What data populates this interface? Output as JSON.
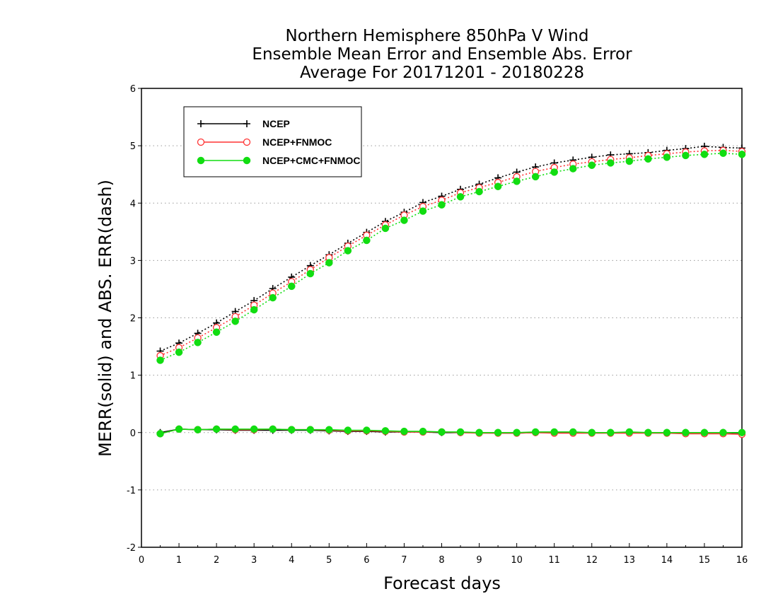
{
  "chart_data": {
    "type": "line",
    "title_lines": [
      "Northern Hemisphere 850hPa V Wind",
      "Ensemble Mean Error and Ensemble Abs. Error",
      "Average For 20171201 - 20180228"
    ],
    "xlabel": "Forecast days",
    "ylabel": "MERR(solid) and ABS. ERR(dash)",
    "xlim": [
      0,
      16
    ],
    "ylim": [
      -2,
      6
    ],
    "xticks": [
      "0",
      "1",
      "2",
      "3",
      "4",
      "5",
      "6",
      "7",
      "8",
      "9",
      "10",
      "11",
      "12",
      "13",
      "14",
      "15",
      "16"
    ],
    "yticks": [
      "-2",
      "-1",
      "0",
      "1",
      "2",
      "3",
      "4",
      "5",
      "6"
    ],
    "grid": "horizontal dotted",
    "legend_position": "top-left",
    "x": [
      0.5,
      1,
      1.5,
      2,
      2.5,
      3,
      3.5,
      4,
      4.5,
      5,
      5.5,
      6,
      6.5,
      7,
      7.5,
      8,
      8.5,
      9,
      9.5,
      10,
      10.5,
      11,
      11.5,
      12,
      12.5,
      13,
      13.5,
      14,
      14.5,
      15,
      15.5,
      16
    ],
    "series": [
      {
        "name": "NCEP",
        "color": "#000000",
        "marker": "plus",
        "merr": [
          0.0,
          0.06,
          0.05,
          0.05,
          0.04,
          0.04,
          0.04,
          0.04,
          0.04,
          0.03,
          0.02,
          0.02,
          0.01,
          0.01,
          0.01,
          0.0,
          0.0,
          0.0,
          -0.01,
          -0.01,
          0.0,
          0.0,
          0.0,
          0.0,
          0.0,
          0.0,
          0.0,
          0.0,
          0.0,
          0.0,
          0.0,
          -0.01
        ],
        "abs_err": [
          1.42,
          1.56,
          1.73,
          1.91,
          2.11,
          2.3,
          2.51,
          2.71,
          2.91,
          3.1,
          3.3,
          3.49,
          3.68,
          3.84,
          4.01,
          4.12,
          4.24,
          4.33,
          4.44,
          4.54,
          4.63,
          4.7,
          4.75,
          4.8,
          4.84,
          4.86,
          4.88,
          4.92,
          4.95,
          4.99,
          4.97,
          4.96
        ]
      },
      {
        "name": "NCEP+FNMOC",
        "color": "#ff3333",
        "marker": "open-circle",
        "merr": [
          -0.02,
          0.06,
          0.05,
          0.06,
          0.05,
          0.05,
          0.06,
          0.05,
          0.05,
          0.04,
          0.03,
          0.03,
          0.02,
          0.01,
          0.01,
          0.01,
          0.0,
          -0.01,
          -0.01,
          -0.01,
          0.0,
          -0.01,
          -0.01,
          -0.01,
          -0.01,
          -0.01,
          -0.01,
          -0.01,
          -0.02,
          -0.02,
          -0.02,
          -0.03
        ],
        "abs_err": [
          1.34,
          1.48,
          1.65,
          1.83,
          2.02,
          2.22,
          2.43,
          2.63,
          2.84,
          3.05,
          3.25,
          3.44,
          3.62,
          3.79,
          3.94,
          4.05,
          4.18,
          4.27,
          4.36,
          4.46,
          4.55,
          4.62,
          4.68,
          4.72,
          4.76,
          4.79,
          4.83,
          4.86,
          4.89,
          4.91,
          4.92,
          4.9
        ]
      },
      {
        "name": "NCEP+CMC+FNMOC",
        "color": "#11dd11",
        "marker": "filled-circle",
        "merr": [
          -0.02,
          0.06,
          0.05,
          0.06,
          0.06,
          0.06,
          0.06,
          0.05,
          0.05,
          0.05,
          0.04,
          0.04,
          0.03,
          0.02,
          0.02,
          0.01,
          0.01,
          0.0,
          0.0,
          0.0,
          0.01,
          0.01,
          0.01,
          0.0,
          0.0,
          0.01,
          0.0,
          0.0,
          0.0,
          0.0,
          0.0,
          0.0
        ],
        "abs_err": [
          1.26,
          1.4,
          1.57,
          1.75,
          1.94,
          2.14,
          2.35,
          2.55,
          2.77,
          2.96,
          3.17,
          3.35,
          3.56,
          3.7,
          3.86,
          3.97,
          4.11,
          4.2,
          4.29,
          4.38,
          4.46,
          4.54,
          4.6,
          4.66,
          4.7,
          4.73,
          4.77,
          4.8,
          4.83,
          4.85,
          4.87,
          4.85
        ]
      }
    ]
  }
}
